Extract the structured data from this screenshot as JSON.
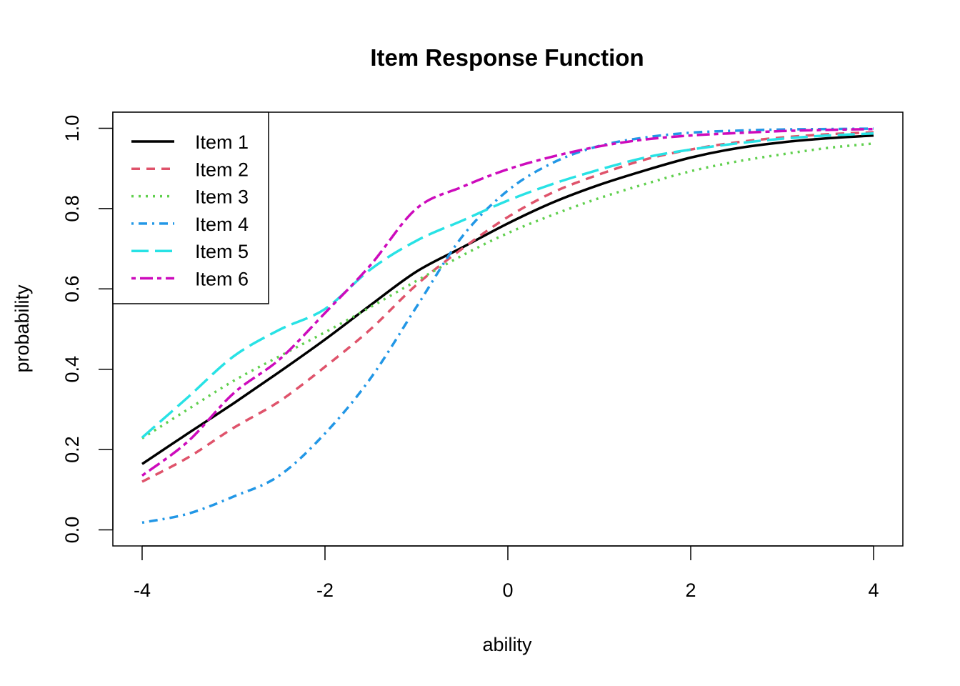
{
  "chart_data": {
    "type": "line",
    "title": "Item Response Function",
    "xlabel": "ability",
    "ylabel": "probability",
    "xlim": [
      -4.32,
      4.32
    ],
    "ylim": [
      -0.04,
      1.04
    ],
    "xticks": [
      -4,
      -2,
      0,
      2,
      4
    ],
    "yticks": [
      0.0,
      0.2,
      0.4,
      0.6,
      0.8,
      1.0
    ],
    "xtick_labels": [
      "-4",
      "-2",
      "0",
      "2",
      "4"
    ],
    "ytick_labels": [
      "0.0",
      "0.2",
      "0.4",
      "0.6",
      "0.8",
      "1.0"
    ],
    "grid": false,
    "legend_position": "top-left",
    "x": [
      -4,
      -3.5,
      -3,
      -2.5,
      -2,
      -1.5,
      -1,
      -0.5,
      0,
      0.5,
      1,
      1.5,
      2,
      2.5,
      3,
      3.5,
      4
    ],
    "series": [
      {
        "name": "Item 1",
        "color": "#000000",
        "dash": "solid",
        "values": [
          0.164,
          0.24,
          0.315,
          0.393,
          0.474,
          0.56,
          0.643,
          0.703,
          0.763,
          0.816,
          0.859,
          0.895,
          0.927,
          0.95,
          0.965,
          0.975,
          0.982
        ]
      },
      {
        "name": "Item 2",
        "color": "#DF536B",
        "dash": "dashed",
        "values": [
          0.12,
          0.18,
          0.254,
          0.32,
          0.406,
          0.5,
          0.61,
          0.7,
          0.779,
          0.841,
          0.885,
          0.922,
          0.947,
          0.965,
          0.977,
          0.985,
          0.99
        ]
      },
      {
        "name": "Item 3",
        "color": "#61D04F",
        "dash": "dotted",
        "values": [
          0.228,
          0.3,
          0.371,
          0.432,
          0.492,
          0.555,
          0.62,
          0.683,
          0.739,
          0.785,
          0.826,
          0.861,
          0.893,
          0.917,
          0.935,
          0.951,
          0.962
        ]
      },
      {
        "name": "Item 4",
        "color": "#2297E6",
        "dash": "dotdash",
        "values": [
          0.018,
          0.04,
          0.083,
          0.135,
          0.24,
          0.378,
          0.555,
          0.73,
          0.845,
          0.915,
          0.956,
          0.977,
          0.989,
          0.994,
          0.997,
          0.998,
          0.999
        ]
      },
      {
        "name": "Item 5",
        "color": "#28E2E5",
        "dash": "longdash",
        "values": [
          0.23,
          0.33,
          0.432,
          0.498,
          0.55,
          0.649,
          0.72,
          0.77,
          0.82,
          0.862,
          0.897,
          0.927,
          0.947,
          0.962,
          0.974,
          0.982,
          0.987
        ]
      },
      {
        "name": "Item 6",
        "color": "#CD0BBC",
        "dash": "twodash",
        "values": [
          0.135,
          0.22,
          0.34,
          0.424,
          0.54,
          0.66,
          0.8,
          0.854,
          0.898,
          0.93,
          0.955,
          0.972,
          0.982,
          0.988,
          0.993,
          0.996,
          0.998
        ]
      }
    ]
  }
}
